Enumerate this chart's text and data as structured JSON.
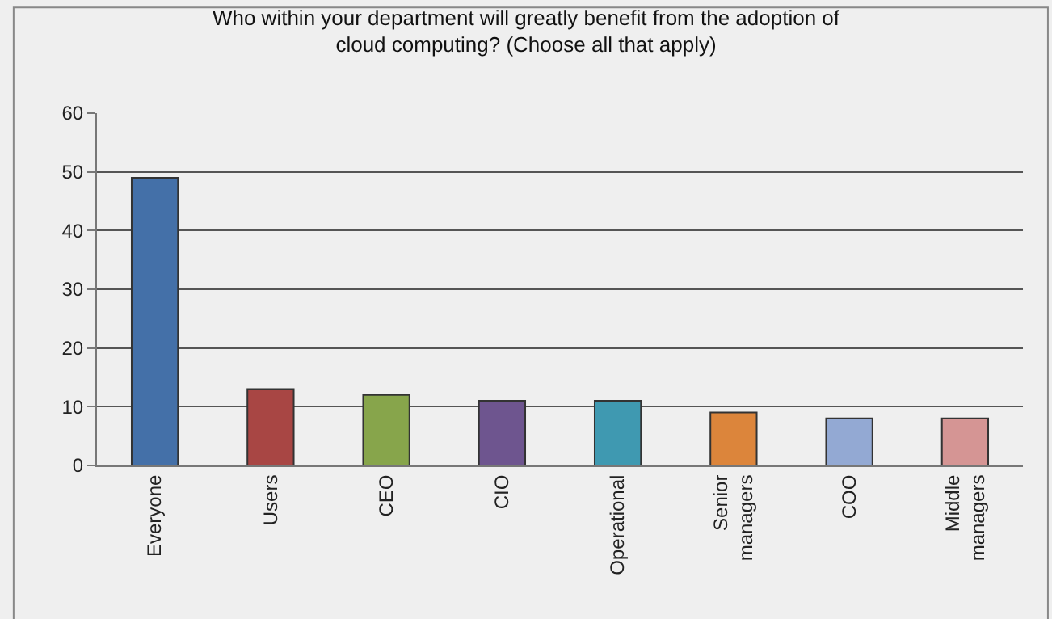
{
  "chart_data": {
    "type": "bar",
    "title": "Who within your department will greatly benefit from the adoption of cloud computing? (Choose all that apply)",
    "categories": [
      "Everyone",
      "Users",
      "CEO",
      "CIO",
      "Operational",
      "Senior managers",
      "COO",
      "Middle managers"
    ],
    "values": [
      49,
      13,
      12,
      11,
      11,
      9,
      8,
      8
    ],
    "colors": [
      "#4470a8",
      "#a84644",
      "#87a54b",
      "#6e558f",
      "#3f99b1",
      "#dc853b",
      "#93a9d3",
      "#d59594"
    ],
    "ylim": [
      0,
      60
    ],
    "yticks": [
      0,
      10,
      20,
      30,
      40,
      50,
      60
    ],
    "grid": "y",
    "legend": false
  }
}
